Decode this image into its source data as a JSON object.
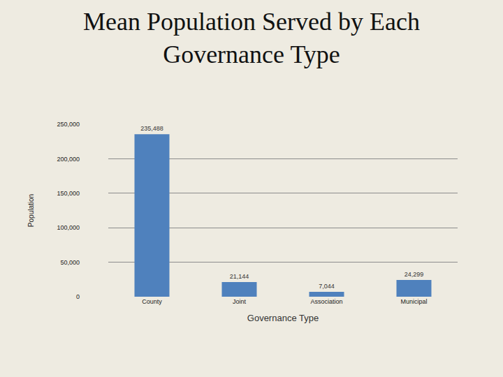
{
  "chart_data": {
    "type": "bar",
    "title": "Mean Population Served by Each Governance Type",
    "x_label": "Governance Type",
    "y_label": "Population",
    "categories": [
      "County",
      "Joint",
      "Association",
      "Municipal"
    ],
    "values": [
      235488,
      21144,
      7044,
      24299
    ],
    "value_labels": [
      "235,488",
      "21,144",
      "7,044",
      "24,299"
    ],
    "data_labels": true,
    "color": "#4f81bd",
    "ylim": [
      0,
      250000
    ],
    "yticks": [
      0,
      {
        "value": 50000,
        "label": "50,000"
      },
      {
        "value": 100000,
        "label": "100,000"
      },
      {
        "value": 150000,
        "label": "150,000"
      },
      {
        "value": 200000,
        "label": "200,000"
      },
      {
        "value": 250000,
        "label": "250,000"
      }
    ],
    "grid": true
  }
}
